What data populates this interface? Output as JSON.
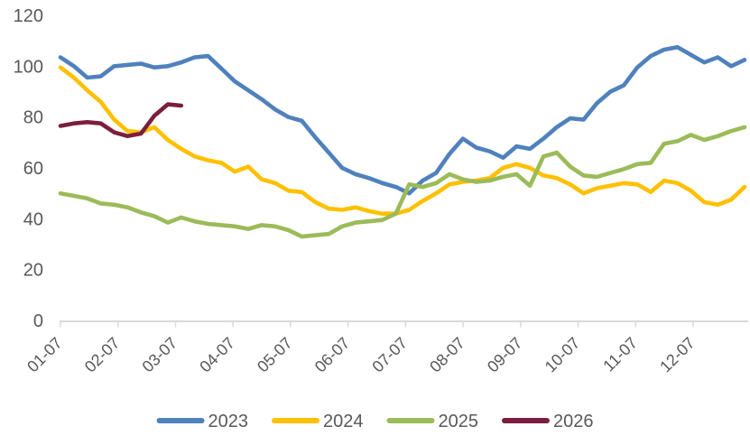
{
  "chart_data": {
    "type": "line",
    "title": "",
    "x_tick_labels": [
      "01-07",
      "02-07",
      "03-07",
      "04-07",
      "05-07",
      "06-07",
      "07-07",
      "08-07",
      "09-07",
      "10-07",
      "11-07",
      "12-07"
    ],
    "y_axis": {
      "min": 0,
      "max": 120,
      "step": 20,
      "tick_labels": [
        "0",
        "20",
        "40",
        "60",
        "80",
        "100",
        "120"
      ]
    },
    "grid": false,
    "legend_position": "bottom",
    "points_per_full_series": 52,
    "series": [
      {
        "name": "2023",
        "color": "#4F81BD",
        "values": [
          103.5,
          100,
          95.5,
          96,
          100,
          100.5,
          101,
          99.5,
          100,
          101.5,
          103.5,
          104,
          99,
          94,
          90.5,
          87,
          83,
          80,
          78.5,
          72,
          66,
          60,
          57.5,
          56,
          54,
          52.5,
          50,
          55,
          58,
          65.5,
          71.5,
          68,
          66.5,
          64,
          68.5,
          67.5,
          71.5,
          76,
          79.5,
          79,
          85.5,
          90,
          92.5,
          99.5,
          104,
          106.5,
          107.5,
          104.5,
          101.5,
          103.5,
          100,
          102.5
        ]
      },
      {
        "name": "2024",
        "color": "#FFC000",
        "values": [
          99.5,
          95.5,
          90.5,
          86,
          79,
          74.5,
          74,
          76,
          71,
          67.5,
          64.5,
          63,
          62,
          58.5,
          60.5,
          55.5,
          54,
          51,
          50.5,
          46.5,
          44,
          43.5,
          44.5,
          43,
          42,
          42,
          43.5,
          47,
          50,
          53.5,
          54.5,
          55,
          56,
          60,
          61.5,
          60,
          57,
          56,
          53.5,
          50,
          52,
          53,
          54,
          53.5,
          50.5,
          55,
          54,
          51,
          46.5,
          45.5,
          47.5,
          52.5
        ]
      },
      {
        "name": "2025",
        "color": "#9BBB59",
        "values": [
          50,
          49,
          48,
          46,
          45.5,
          44.5,
          42.5,
          41,
          38.5,
          40.5,
          39,
          38,
          37.5,
          37,
          36,
          37.5,
          37,
          35.5,
          33,
          33.5,
          34,
          37,
          38.5,
          39,
          39.5,
          42,
          53.5,
          52.5,
          54,
          57.5,
          55.5,
          54.5,
          55,
          56.5,
          57.5,
          53,
          64.5,
          66,
          60.5,
          57,
          56.5,
          58,
          59.5,
          61.5,
          62,
          69.5,
          70.5,
          73,
          71,
          72.5,
          74.5,
          76
        ]
      },
      {
        "name": "2026",
        "color": "#7C1E3F",
        "values": [
          76.5,
          77.5,
          78,
          77.5,
          74,
          72.5,
          73.5,
          80.5,
          85,
          84.5
        ]
      }
    ]
  },
  "colors": {
    "background": "#FFFFFF",
    "axis_line": "#D9D9D9",
    "tick_mark": "#D9D9D9",
    "label_text": "#595959"
  }
}
